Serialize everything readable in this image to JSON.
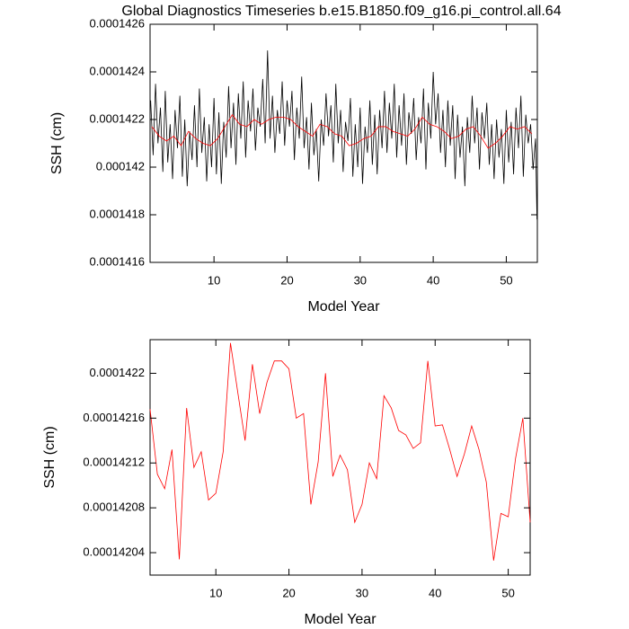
{
  "chart_data": [
    {
      "type": "line",
      "title": "Global Diagnostics Timeseries b.e15.B1850.f09_g16.pi_control.all.64",
      "xlabel": "Model Year",
      "ylabel": "SSH (cm)",
      "xlim": [
        1.25,
        54.25
      ],
      "xticks": [
        10,
        20,
        30,
        40,
        50
      ],
      "ylim": [
        0.0001416,
        0.0001426
      ],
      "yticks": [
        0.0001416,
        0.0001418,
        0.000142,
        0.0001422,
        0.0001424,
        0.0001426
      ],
      "series": [
        {
          "color": "#000000",
          "x": [
            1.33,
            1.67,
            2,
            2.33,
            2.67,
            3,
            3.33,
            3.67,
            4,
            4.33,
            4.67,
            5,
            5.33,
            5.67,
            6,
            6.33,
            6.67,
            7,
            7.33,
            7.67,
            8,
            8.33,
            8.67,
            9,
            9.33,
            9.67,
            10,
            10.33,
            10.67,
            11,
            11.33,
            11.67,
            12,
            12.33,
            12.67,
            13,
            13.33,
            13.67,
            14,
            14.33,
            14.67,
            15,
            15.33,
            15.67,
            16,
            16.33,
            16.67,
            17,
            17.33,
            17.67,
            18,
            18.33,
            18.67,
            19,
            19.33,
            19.67,
            20,
            20.33,
            20.67,
            21,
            21.33,
            21.67,
            22,
            22.33,
            22.67,
            23,
            23.33,
            23.67,
            24,
            24.33,
            24.67,
            25,
            25.33,
            25.67,
            26,
            26.33,
            26.67,
            27,
            27.33,
            27.67,
            28,
            28.33,
            28.67,
            29,
            29.33,
            29.67,
            30,
            30.33,
            30.67,
            31,
            31.33,
            31.67,
            32,
            32.33,
            32.67,
            33,
            33.33,
            33.67,
            34,
            34.33,
            34.67,
            35,
            35.33,
            35.67,
            36,
            36.33,
            36.67,
            37,
            37.33,
            37.67,
            38,
            38.33,
            38.67,
            39,
            39.33,
            39.67,
            40,
            40.33,
            40.67,
            41,
            41.33,
            41.67,
            42,
            42.33,
            42.67,
            43,
            43.33,
            43.67,
            44,
            44.33,
            44.67,
            45,
            45.33,
            45.67,
            46,
            46.33,
            46.67,
            47,
            47.33,
            47.67,
            48,
            48.33,
            48.67,
            49,
            49.33,
            49.67,
            50,
            50.33,
            50.67,
            51,
            51.33,
            51.67,
            52,
            52.33,
            52.67,
            53,
            53.33,
            53.67,
            54,
            54.2
          ],
          "values": [
            0.00014228,
            0.00014205,
            0.00014235,
            0.0001421,
            0.00014225,
            0.00014198,
            0.00014232,
            0.00014202,
            0.00014218,
            0.00014195,
            0.00014224,
            0.00014208,
            0.0001423,
            0.00014196,
            0.0001422,
            0.00014192,
            0.00014215,
            0.00014203,
            0.00014226,
            0.000142,
            0.00014233,
            0.00014206,
            0.00014221,
            0.00014194,
            0.00014218,
            0.000142,
            0.00014229,
            0.00014197,
            0.00014223,
            0.00014193,
            0.00014219,
            0.00014204,
            0.00014234,
            0.00014208,
            0.00014227,
            0.00014201,
            0.00014231,
            0.00014212,
            0.00014236,
            0.00014204,
            0.00014228,
            0.00014215,
            0.00014233,
            0.00014207,
            0.00014225,
            0.00014217,
            0.00014237,
            0.0001421,
            0.00014249,
            0.00014212,
            0.0001423,
            0.00014206,
            0.00014224,
            0.00014214,
            0.00014236,
            0.00014209,
            0.00014228,
            0.00014217,
            0.00014232,
            0.00014203,
            0.00014225,
            0.00014212,
            0.00014238,
            0.00014208,
            0.00014221,
            0.00014199,
            0.00014227,
            0.00014205,
            0.00014216,
            0.00014194,
            0.0001422,
            0.00014209,
            0.00014231,
            0.00014213,
            0.00014226,
            0.00014202,
            0.00014235,
            0.0001421,
            0.00014224,
            0.00014198,
            0.00014219,
            0.00014211,
            0.00014229,
            0.00014196,
            0.00014218,
            0.000142,
            0.00014225,
            0.00014193,
            0.00014217,
            0.00014206,
            0.00014228,
            0.00014201,
            0.00014222,
            0.00014197,
            0.00014224,
            0.00014208,
            0.00014232,
            0.00014206,
            0.00014227,
            0.00014212,
            0.00014235,
            0.00014204,
            0.00014226,
            0.00014209,
            0.00014231,
            0.00014201,
            0.00014223,
            0.00014214,
            0.00014229,
            0.00014203,
            0.00014221,
            0.0001421,
            0.00014233,
            0.00014199,
            0.00014227,
            0.00014212,
            0.0001424,
            0.00014218,
            0.00014231,
            0.00014206,
            0.00014224,
            0.000142,
            0.00014228,
            0.00014209,
            0.00014226,
            0.00014195,
            0.00014222,
            0.00014204,
            0.00014217,
            0.00014192,
            0.00014221,
            0.00014206,
            0.0001423,
            0.0001421,
            0.00014225,
            0.00014199,
            0.00014223,
            0.00014212,
            0.00014227,
            0.00014201,
            0.00014218,
            0.00014195,
            0.0001422,
            0.00014204,
            0.00014216,
            0.00014193,
            0.00014224,
            0.00014202,
            0.00014219,
            0.00014197,
            0.00014225,
            0.00014208,
            0.0001423,
            0.00014196,
            0.00014222,
            0.0001421,
            0.00014218,
            0.00014199,
            0.00014212,
            0.00014178
          ]
        },
        {
          "color": "#ff0000",
          "x": [
            1.5,
            2.5,
            3.5,
            4.5,
            5.5,
            6.5,
            7.5,
            8.5,
            9.5,
            10.5,
            11.5,
            12.5,
            13.5,
            14.5,
            15.5,
            16.5,
            17.5,
            18.5,
            19.5,
            20.5,
            21.5,
            22.5,
            23.5,
            24.5,
            25.5,
            26.5,
            27.5,
            28.5,
            29.5,
            30.5,
            31.5,
            32.5,
            33.5,
            34.5,
            35.5,
            36.5,
            37.5,
            38.5,
            39.5,
            40.5,
            41.5,
            42.5,
            43.5,
            44.5,
            45.5,
            46.5,
            47.5,
            48.5,
            49.5,
            50.5,
            51.5,
            52.5,
            53.5
          ],
          "values": [
            0.00014217,
            0.00014213,
            0.00014211,
            0.00014213,
            0.00014209,
            0.00014215,
            0.00014212,
            0.0001421,
            0.00014209,
            0.00014212,
            0.00014217,
            0.00014222,
            0.00014218,
            0.00014217,
            0.0001422,
            0.00014218,
            0.0001422,
            0.00014221,
            0.00014221,
            0.0001422,
            0.00014217,
            0.00014215,
            0.00014213,
            0.00014218,
            0.00014217,
            0.00014214,
            0.00014213,
            0.00014209,
            0.0001421,
            0.00014212,
            0.00014213,
            0.00014217,
            0.00014217,
            0.00014215,
            0.00014214,
            0.00014213,
            0.00014216,
            0.00014221,
            0.00014218,
            0.00014217,
            0.00014215,
            0.00014212,
            0.00014213,
            0.00014216,
            0.00014217,
            0.00014213,
            0.00014208,
            0.0001421,
            0.00014213,
            0.00014217,
            0.00014216,
            0.00014217,
            0.00014214
          ]
        }
      ]
    },
    {
      "type": "line",
      "xlabel": "Model Year",
      "ylabel": "SSH (cm)",
      "xlim": [
        1,
        53
      ],
      "xticks": [
        10,
        20,
        30,
        40,
        50
      ],
      "ylim": [
        0.00014202,
        0.00014223
      ],
      "yticks": [
        0.00014204,
        0.00014208,
        0.00014212,
        0.00014216,
        0.0001422
      ],
      "series": [
        {
          "color": "#ff0000",
          "x": [
            1,
            2,
            3,
            4,
            5,
            6,
            7,
            8,
            9,
            10,
            11,
            12,
            13,
            14,
            15,
            16,
            17,
            18,
            19,
            20,
            21,
            22,
            23,
            24,
            25,
            26,
            27,
            28,
            29,
            30,
            31,
            32,
            33,
            34,
            35,
            36,
            37,
            38,
            39,
            40,
            41,
            42,
            43,
            44,
            45,
            46,
            47,
            48,
            49,
            50,
            51,
            52,
            53
          ],
          "values": [
            0.000142168,
            0.00014211,
            0.000142097,
            0.000142132,
            0.000142034,
            0.000142169,
            0.000142116,
            0.00014213,
            0.000142087,
            0.000142093,
            0.00014213,
            0.000142227,
            0.000142183,
            0.00014214,
            0.000142208,
            0.000142164,
            0.000142192,
            0.000142211,
            0.000142211,
            0.000142204,
            0.00014216,
            0.000142164,
            0.000142083,
            0.000142121,
            0.0001422,
            0.000142108,
            0.000142127,
            0.000142114,
            0.000142067,
            0.000142083,
            0.00014212,
            0.000142106,
            0.00014218,
            0.000142169,
            0.000142149,
            0.000142145,
            0.000142133,
            0.000142138,
            0.000142211,
            0.000142153,
            0.000142154,
            0.000142132,
            0.000142108,
            0.000142128,
            0.000142153,
            0.000142132,
            0.000142103,
            0.000142033,
            0.000142075,
            0.000142072,
            0.000142124,
            0.00014216,
            0.000142067
          ]
        }
      ]
    }
  ]
}
